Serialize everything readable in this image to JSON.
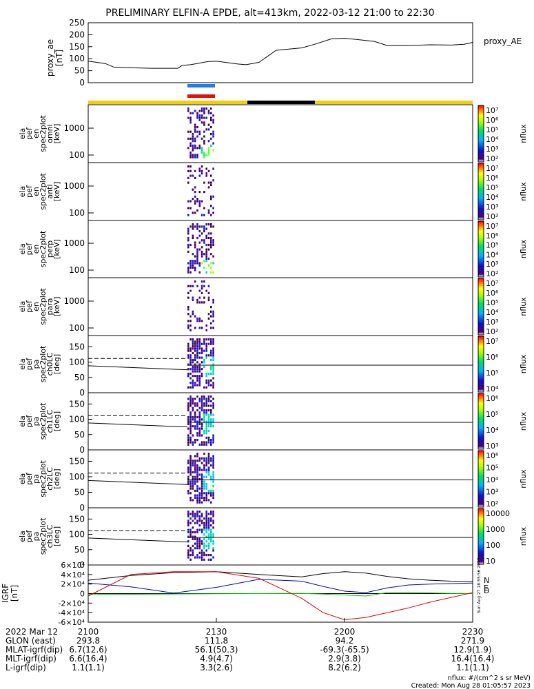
{
  "title": "PRELIMINARY ELFIN-A EPDE, alt=413km, 2022-03-12 21:00 to 22:30",
  "chart_data": [
    {
      "type": "line",
      "panel": "proxy_ae",
      "ylabel_lines": [
        "proxy_ae",
        "[nT]"
      ],
      "legend": "proxy_AE",
      "ylim": [
        0,
        250
      ],
      "yticks": [
        "0",
        "50",
        "100",
        "150",
        "200",
        "250"
      ],
      "x_minutes": [
        0,
        4,
        6,
        10,
        15,
        21,
        22,
        24,
        28,
        30,
        35,
        37,
        40,
        44,
        47,
        50,
        53,
        57,
        60,
        63,
        67,
        70,
        75,
        80,
        85,
        88,
        90
      ],
      "values": [
        90,
        80,
        65,
        62,
        60,
        60,
        72,
        75,
        88,
        90,
        78,
        75,
        85,
        135,
        140,
        145,
        160,
        183,
        185,
        180,
        172,
        155,
        155,
        158,
        157,
        160,
        168
      ]
    },
    {
      "type": "heatmap",
      "panel": "elx_pef_en_spec2plot_omni",
      "ylabel_lines": [
        "ela",
        "pef",
        "en",
        "spec2plot",
        "omni",
        "[keV]"
      ],
      "yscale": "log",
      "yticks": [
        "100",
        "1000"
      ],
      "colorbar": {
        "label": "nflux",
        "ticks": [
          "10²",
          "10³",
          "10⁴",
          "10⁵",
          "10⁶",
          "10⁷"
        ]
      }
    },
    {
      "type": "heatmap",
      "panel": "elx_pef_en_spec2plot_anti",
      "ylabel_lines": [
        "ela",
        "pef",
        "en",
        "spec2plot",
        "anti",
        "[keV]"
      ],
      "yscale": "log",
      "yticks": [
        "100",
        "1000"
      ],
      "colorbar": {
        "label": "nflux",
        "ticks": [
          "10²",
          "10³",
          "10⁴",
          "10⁵",
          "10⁶",
          "10⁷"
        ]
      }
    },
    {
      "type": "heatmap",
      "panel": "elx_pef_en_spec2plot_perp",
      "ylabel_lines": [
        "ela",
        "pef",
        "en",
        "spec2plot",
        "perp",
        "[keV]"
      ],
      "yscale": "log",
      "yticks": [
        "100",
        "1000"
      ],
      "colorbar": {
        "label": "nflux",
        "ticks": [
          "10²",
          "10³",
          "10⁴",
          "10⁵",
          "10⁶",
          "10⁷"
        ]
      }
    },
    {
      "type": "heatmap",
      "panel": "elx_pef_en_spec2plot_para",
      "ylabel_lines": [
        "ela",
        "pef",
        "en",
        "spec2plot",
        "para",
        "[keV]"
      ],
      "yscale": "log",
      "yticks": [
        "100",
        "1000"
      ],
      "colorbar": {
        "label": "nflux",
        "ticks": [
          "10²",
          "10³",
          "10⁴",
          "10⁵",
          "10⁶",
          "10⁷"
        ]
      }
    },
    {
      "type": "heatmap",
      "panel": "elx_pef_pa_spec2plot_ch0LC",
      "ylabel_lines": [
        "ela",
        "pef",
        "pa",
        "spec2plot",
        "ch0LC",
        "[deg]"
      ],
      "ylim": [
        0,
        180
      ],
      "yticks": [
        "0",
        "50",
        "100",
        "150"
      ],
      "colorbar": {
        "label": "nflux",
        "ticks": [
          "10⁴",
          "10⁵",
          "10⁶",
          "10⁷"
        ]
      }
    },
    {
      "type": "heatmap",
      "panel": "elx_pef_pa_spec2plot_ch1LC",
      "ylabel_lines": [
        "ela",
        "pef",
        "pa",
        "spec2plot",
        "ch1LC",
        "[deg]"
      ],
      "ylim": [
        0,
        180
      ],
      "yticks": [
        "0",
        "50",
        "100",
        "150"
      ],
      "colorbar": {
        "label": "nflux",
        "ticks": [
          "10³",
          "10⁴",
          "10⁵",
          "10⁶"
        ]
      }
    },
    {
      "type": "heatmap",
      "panel": "elx_pef_pa_spec2plot_ch2LC",
      "ylabel_lines": [
        "ela",
        "pef",
        "pa",
        "spec2plot",
        "ch2LC",
        "[deg]"
      ],
      "ylim": [
        0,
        180
      ],
      "yticks": [
        "0",
        "50",
        "100",
        "150"
      ],
      "colorbar": {
        "label": "nflux",
        "ticks": [
          "10²",
          "10³",
          "10⁴",
          "10⁵",
          "10⁶"
        ]
      }
    },
    {
      "type": "heatmap",
      "panel": "elx_pef_pa_spec2plot_ch3LC",
      "ylabel_lines": [
        "ela",
        "pef",
        "pa",
        "spec2plot",
        "ch3LC",
        "[deg]"
      ],
      "ylim": [
        0,
        180
      ],
      "yticks": [
        "0",
        "50",
        "100",
        "150"
      ],
      "colorbar": {
        "label": "nflux",
        "ticks": [
          "10",
          "100",
          "1000",
          "10000"
        ]
      }
    },
    {
      "type": "line",
      "panel": "IGRF",
      "ylabel_lines": [
        "IGRF",
        "[nT]"
      ],
      "ylim": [
        -60000,
        60000
      ],
      "yticks": [
        "-6×10⁴",
        "-4×10⁴",
        "-2×10⁴",
        "0",
        "2×10⁴",
        "4×10⁴",
        "6×10⁴"
      ],
      "legend": [
        "N",
        "E",
        "D"
      ],
      "side_note": "Sun Aug 27 18:55:56 2023",
      "x_minutes": [
        0,
        10,
        20,
        30,
        40,
        50,
        55,
        60,
        65,
        70,
        75,
        80,
        85,
        90
      ],
      "series": [
        {
          "name": "total",
          "color": "#000000",
          "values": [
            28000,
            38000,
            44000,
            46000,
            40000,
            35000,
            42000,
            46000,
            43000,
            36000,
            31000,
            28000,
            26000,
            25000
          ]
        },
        {
          "name": "N",
          "color": "#0000cc",
          "values": [
            22000,
            14000,
            1000,
            13000,
            30000,
            26000,
            15000,
            5000,
            2000,
            12000,
            18000,
            20000,
            21000,
            22000
          ]
        },
        {
          "name": "E",
          "color": "#00cc00",
          "values": [
            -2000,
            -1500,
            -1000,
            -300,
            0,
            500,
            -1000,
            -3000,
            -5000,
            2000,
            3000,
            1500,
            500,
            0
          ]
        },
        {
          "name": "D",
          "color": "#dd0000",
          "values": [
            -5000,
            40000,
            46000,
            46000,
            32000,
            -10000,
            -40000,
            -55000,
            -50000,
            -40000,
            -30000,
            -18000,
            -8000,
            2000
          ]
        }
      ]
    }
  ],
  "xaxis": {
    "time_ticks": [
      "2100",
      "2130",
      "2200",
      "2230"
    ],
    "row_labels": [
      "2022 Mar 12",
      "GLON (east)",
      "MLAT-igrf(dip)",
      "MLT-igrf(dip)",
      "L-igrf(dip)"
    ],
    "columns": [
      [
        "293.8",
        "6.7(12.6)",
        "6.6(16.4)",
        "1.1(1.1)"
      ],
      [
        "111.8",
        "56.1(50.3)",
        "4.9(4.7)",
        "3.3(2.6)"
      ],
      [
        "94.2",
        "-69.3(-65.5)",
        "2.9(3.8)",
        "8.2(6.2)"
      ],
      [
        "271.9",
        "12.9(1.9)",
        "16.4(16.4)",
        "1.1(1.1)"
      ]
    ]
  },
  "footer": {
    "units": "nflux: #/(cm^2 s sr MeV)",
    "created": "Created: Mon Aug 28 01:05:57 2023"
  },
  "colors": {
    "sun_bar": "#f5d000",
    "shadow_bar": "#000000",
    "marker_blue": "#1e7fe6",
    "marker_red": "#e01010"
  }
}
